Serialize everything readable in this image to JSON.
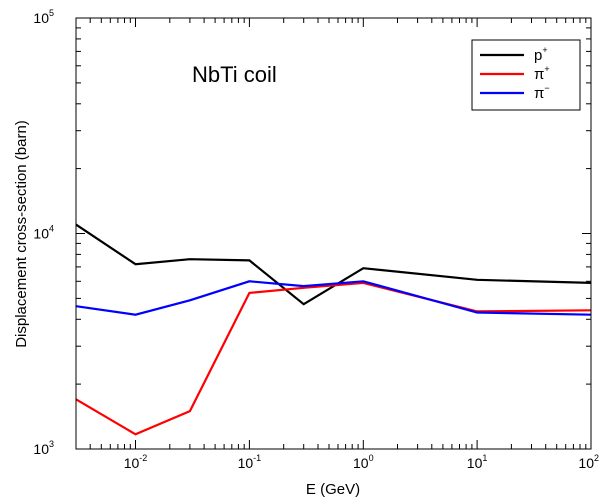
{
  "chart_data": {
    "type": "line",
    "title": "",
    "annotation": "NbTi coil",
    "xlabel": "E (GeV)",
    "ylabel": "Displacement cross-section (barn)",
    "xscale": "log",
    "yscale": "log",
    "xlim": [
      0.003,
      100
    ],
    "ylim": [
      1000,
      100000
    ],
    "grid": false,
    "legend_position": "top-right",
    "x_ticks": [
      {
        "value": 0.01,
        "base": "10",
        "exp": "-2"
      },
      {
        "value": 0.1,
        "base": "10",
        "exp": "-1"
      },
      {
        "value": 1,
        "base": "10",
        "exp": "0"
      },
      {
        "value": 10,
        "base": "10",
        "exp": "1"
      },
      {
        "value": 100,
        "base": "10",
        "exp": "2"
      }
    ],
    "y_ticks": [
      {
        "value": 1000,
        "base": "10",
        "exp": "3"
      },
      {
        "value": 10000,
        "base": "10",
        "exp": "4"
      },
      {
        "value": 100000,
        "base": "10",
        "exp": "5"
      }
    ],
    "series": [
      {
        "name": "p",
        "sup": "+",
        "color": "#000000",
        "x": [
          0.003,
          0.01,
          0.03,
          0.1,
          0.3,
          1,
          10,
          100
        ],
        "y": [
          11000,
          7200,
          7600,
          7500,
          4700,
          6900,
          6100,
          5900
        ]
      },
      {
        "name": "π",
        "sup": "+",
        "color": "#ff0000",
        "x": [
          0.003,
          0.01,
          0.03,
          0.1,
          0.3,
          1,
          10,
          100
        ],
        "y": [
          1700,
          1170,
          1500,
          5300,
          5600,
          5900,
          4350,
          4400
        ]
      },
      {
        "name": "π",
        "sup": "−",
        "color": "#0000ff",
        "x": [
          0.003,
          0.01,
          0.03,
          0.1,
          0.3,
          1,
          10,
          100
        ],
        "y": [
          4600,
          4200,
          4900,
          6000,
          5700,
          6000,
          4300,
          4200
        ]
      }
    ]
  }
}
